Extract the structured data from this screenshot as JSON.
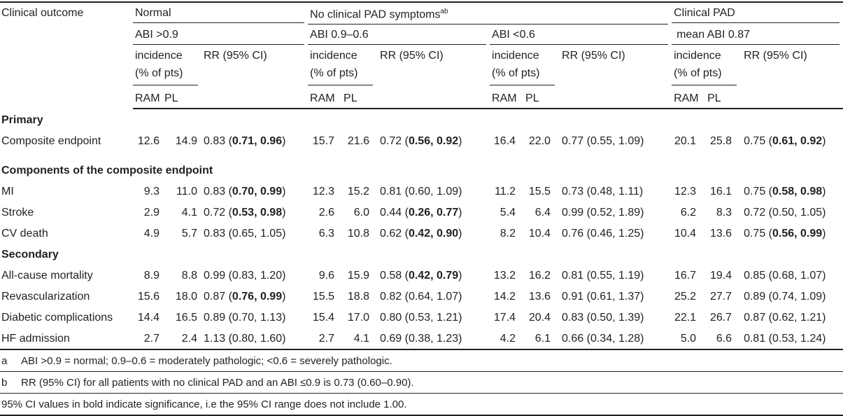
{
  "header": {
    "outcome": "Clinical outcome",
    "groups": [
      {
        "title": "Normal",
        "abi": "ABI >0.9",
        "incidence": "incidence (% of pts)",
        "rr": "RR (95% CI)",
        "ram": "RAM",
        "pl": "PL"
      },
      {
        "title": "No clinical PAD symptoms",
        "sup": "ab",
        "abi": "ABI 0.9–0.6",
        "incidence": "incidence (% of pts)",
        "rr": "RR (95% CI)",
        "ram": "RAM",
        "pl": "PL"
      },
      {
        "abi": "ABI <0.6",
        "incidence": "incidence (% of pts)",
        "rr": "RR (95% CI)",
        "ram": "RAM",
        "pl": "PL"
      },
      {
        "title": "Clinical PAD",
        "abi": "mean ABI 0.87",
        "incidence": "incidence (% of pts)",
        "rr": "RR (95% CI)",
        "ram": "RAM",
        "pl": "PL"
      }
    ]
  },
  "body": [
    {
      "section": "Primary",
      "rows": [
        {
          "label": "Composite endpoint",
          "values": [
            "12.6",
            "14.9",
            [
              "0.83 (",
              "0.71, 0.96",
              ")"
            ],
            "15.7",
            "21.6",
            [
              "0.72 (",
              "0.56, 0.92",
              ")"
            ],
            "16.4",
            "22.0",
            "0.77 (0.55, 1.09)",
            "20.1",
            "25.8",
            [
              "0.75 (",
              "0.61, 0.92",
              ")"
            ]
          ]
        }
      ]
    },
    {
      "section": "Components of the composite endpoint",
      "rows": [
        {
          "label": "MI",
          "values": [
            "9.3",
            "11.0",
            [
              "0.83 (",
              "0.70, 0.99",
              ")"
            ],
            "12.3",
            "15.2",
            "0.81 (0.60, 1.09)",
            "11.2",
            "15.5",
            "0.73 (0.48, 1.11)",
            "12.3",
            "16.1",
            [
              "0.75 (",
              "0.58, 0.98",
              ")"
            ]
          ]
        },
        {
          "label": "Stroke",
          "values": [
            "2.9",
            "4.1",
            [
              "0.72 (",
              "0.53, 0.98",
              ")"
            ],
            "2.6",
            "6.0",
            [
              "0.44 (",
              "0.26, 0.77",
              ")"
            ],
            "5.4",
            "6.4",
            "0.99 (0.52, 1.89)",
            "6.2",
            "8.3",
            "0.72 (0.50, 1.05)"
          ]
        },
        {
          "label": "CV death",
          "values": [
            "4.9",
            "5.7",
            "0.83 (0.65, 1.05)",
            "6.3",
            "10.8",
            [
              "0.62 (",
              "0.42, 0.90",
              ")"
            ],
            "8.2",
            "10.4",
            "0.76 (0.46, 1.25)",
            "10.4",
            "13.6",
            [
              "0.75 (",
              "0.56, 0.99",
              ")"
            ]
          ]
        }
      ]
    },
    {
      "section": "Secondary",
      "rows": [
        {
          "label": "All-cause mortality",
          "values": [
            "8.9",
            "8.8",
            "0.99 (0.83, 1.20)",
            "9.6",
            "15.9",
            [
              "0.58 (",
              "0.42, 0.79",
              ")"
            ],
            "13.2",
            "16.2",
            "0.81 (0.55, 1.19)",
            "16.7",
            "19.4",
            "0.85 (0.68, 1.07)"
          ]
        },
        {
          "label": "Revascularization",
          "values": [
            "15.6",
            "18.0",
            [
              "0.87 (",
              "0.76, 0.99",
              ")"
            ],
            "15.5",
            "18.8",
            "0.82 (0.64, 1.07)",
            "14.2",
            "13.6",
            "0.91 (0.61, 1.37)",
            "25.2",
            "27.7",
            "0.89 (0.74, 1.09)"
          ]
        },
        {
          "label": "Diabetic complications",
          "values": [
            "14.4",
            "16.5",
            "0.89 (0.70, 1.13)",
            "15.4",
            "17.0",
            "0.80 (0.53, 1.21)",
            "17.4",
            "20.4",
            "0.83 (0.50, 1.39)",
            "22.1",
            "26.7",
            "0.87 (0.62, 1.21)"
          ]
        },
        {
          "label": "HF admission",
          "values": [
            "2.7",
            "2.4",
            "1.13 (0.80, 1.60)",
            "2.7",
            "4.1",
            "0.69 (0.38, 1.23)",
            "4.2",
            "6.1",
            "0.66 (0.34, 1.28)",
            "5.0",
            "6.6",
            "0.81 (0.53, 1.24)"
          ]
        }
      ]
    }
  ],
  "footnotes": [
    {
      "mark": "a",
      "text": "ABI >0.9 = normal; 0.9–0.6 = moderately pathologic; <0.6 = severely pathologic."
    },
    {
      "mark": "b",
      "text": "RR (95% CI) for all patients with no clinical PAD and an ABI ≤0.9 is 0.73 (0.60–0.90)."
    },
    {
      "text": "95% CI values in bold indicate significance, i.e the 95% CI range does not include 1.00."
    }
  ]
}
